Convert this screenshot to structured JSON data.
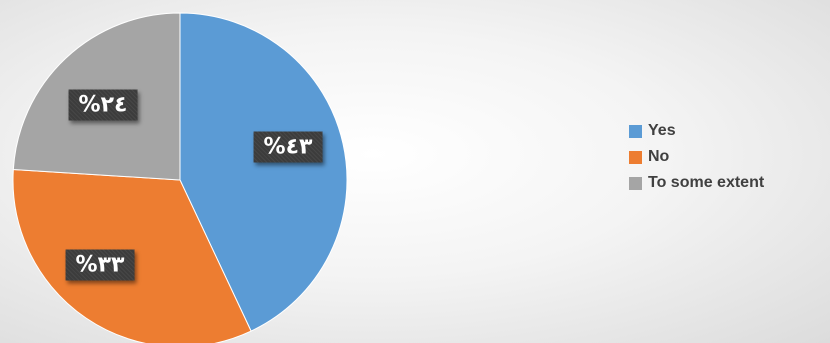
{
  "chart_data": {
    "type": "pie",
    "title": "",
    "categories": [
      "Yes",
      "No",
      "To some extent"
    ],
    "values": [
      43,
      33,
      24
    ],
    "data_labels": [
      "%٤٣",
      "%٣٣",
      "%٢٤"
    ],
    "colors": [
      "#5b9bd5",
      "#ed7d31",
      "#a5a5a5"
    ],
    "start_angle_deg": 0,
    "direction": "clockwise",
    "legend_placement": "right"
  }
}
